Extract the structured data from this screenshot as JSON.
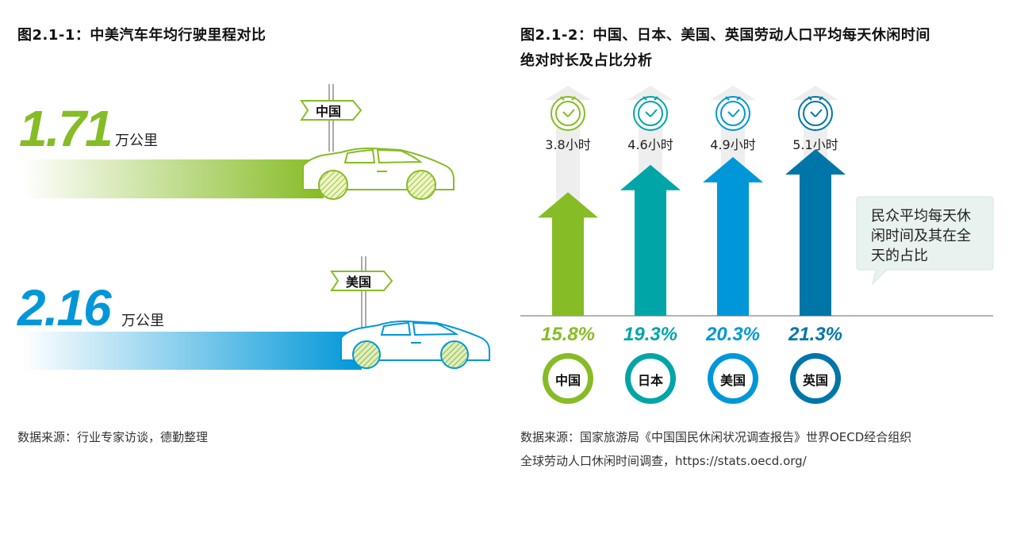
{
  "fig1": {
    "title": "图2.1-1：中美汽车年均行驶里程对比",
    "source": "数据来源：行业专家访谈，德勤整理",
    "unit": "万公里",
    "items": [
      {
        "country": "中国",
        "value": "1.71",
        "color": "#86bc25"
      },
      {
        "country": "美国",
        "value": "2.16",
        "color": "#0097d8"
      }
    ]
  },
  "fig2": {
    "title_line1": "图2.1-2：中国、日本、美国、英国劳动人口平均每天休闲时间",
    "title_line2": "绝对时长及占比分析",
    "callout": [
      "民众平均每天休",
      "闲时间及其在全",
      "天的占比"
    ],
    "source_line1": "数据来源：国家旅游局《中国国民休闲状况调查报告》世界OECD经合组织",
    "source_line2": "全球劳动人口休闲时间调查，https://stats.oecd.org/"
  },
  "chart_data": {
    "type": "bar",
    "categories": [
      "中国",
      "日本",
      "美国",
      "英国"
    ],
    "series": [
      {
        "values": [
          3.8,
          4.6,
          4.9,
          5.1
        ]
      },
      {
        "values": [
          15.8,
          19.3,
          20.3,
          21.3
        ]
      }
    ],
    "value_labels": [
      "3.8小时",
      "4.6小时",
      "4.9小时",
      "5.1小时"
    ],
    "percent_labels": [
      "15.8%",
      "19.3%",
      "20.3%",
      "21.3%"
    ],
    "colors": [
      "#86bc25",
      "#00a5a8",
      "#0097d8",
      "#0076a8"
    ],
    "max_percent": 24
  }
}
